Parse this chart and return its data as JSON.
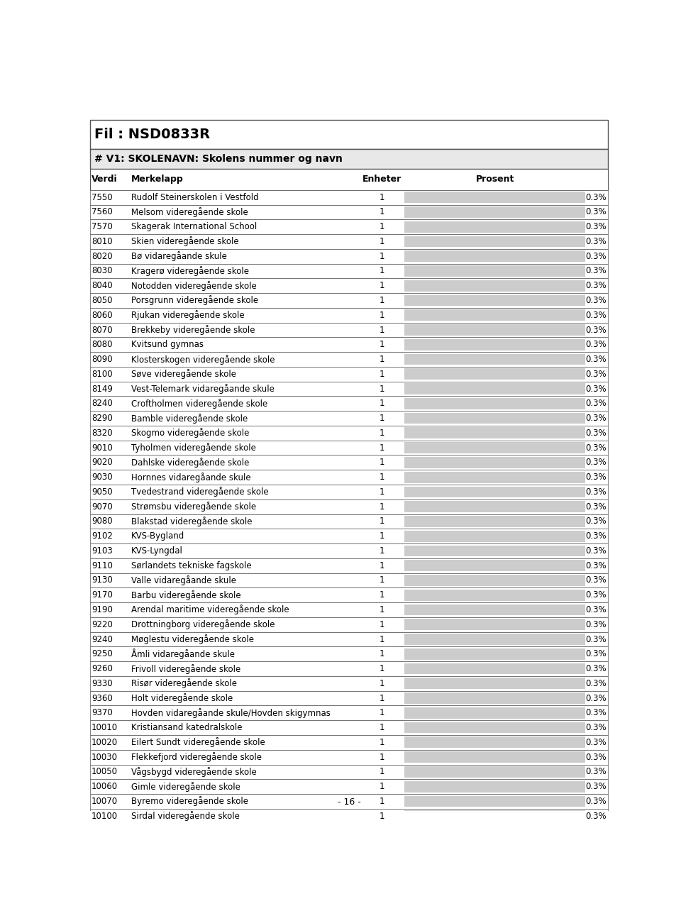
{
  "title": "Fil : NSD0833R",
  "subtitle": "# V1: SKOLENAVN: Skolens nummer og navn",
  "col_headers": [
    "Verdi",
    "Merkelapp",
    "Enheter",
    "Prosent"
  ],
  "rows": [
    [
      "7550",
      "Rudolf Steinerskolen i Vestfold",
      "1",
      "0.3%"
    ],
    [
      "7560",
      "Melsom videregående skole",
      "1",
      "0.3%"
    ],
    [
      "7570",
      "Skagerak International School",
      "1",
      "0.3%"
    ],
    [
      "8010",
      "Skien videregående skole",
      "1",
      "0.3%"
    ],
    [
      "8020",
      "Bø vidaregåande skule",
      "1",
      "0.3%"
    ],
    [
      "8030",
      "Kragerø videregående skole",
      "1",
      "0.3%"
    ],
    [
      "8040",
      "Notodden videregående skole",
      "1",
      "0.3%"
    ],
    [
      "8050",
      "Porsgrunn videregående skole",
      "1",
      "0.3%"
    ],
    [
      "8060",
      "Rjukan videregående skole",
      "1",
      "0.3%"
    ],
    [
      "8070",
      "Brekkeby videregående skole",
      "1",
      "0.3%"
    ],
    [
      "8080",
      "Kvitsund gymnas",
      "1",
      "0.3%"
    ],
    [
      "8090",
      "Klosterskogen videregående skole",
      "1",
      "0.3%"
    ],
    [
      "8100",
      "Søve videregående skole",
      "1",
      "0.3%"
    ],
    [
      "8149",
      "Vest-Telemark vidaregåande skule",
      "1",
      "0.3%"
    ],
    [
      "8240",
      "Croftholmen videregående skole",
      "1",
      "0.3%"
    ],
    [
      "8290",
      "Bamble videregående skole",
      "1",
      "0.3%"
    ],
    [
      "8320",
      "Skogmo videregående skole",
      "1",
      "0.3%"
    ],
    [
      "9010",
      "Tyholmen videregående skole",
      "1",
      "0.3%"
    ],
    [
      "9020",
      "Dahlske videregående skole",
      "1",
      "0.3%"
    ],
    [
      "9030",
      "Hornnes vidaregåande skule",
      "1",
      "0.3%"
    ],
    [
      "9050",
      "Tvedestrand videregående skole",
      "1",
      "0.3%"
    ],
    [
      "9070",
      "Strømsbu videregående skole",
      "1",
      "0.3%"
    ],
    [
      "9080",
      "Blakstad videregående skole",
      "1",
      "0.3%"
    ],
    [
      "9102",
      "KVS-Bygland",
      "1",
      "0.3%"
    ],
    [
      "9103",
      "KVS-Lyngdal",
      "1",
      "0.3%"
    ],
    [
      "9110",
      "Sørlandets tekniske fagskole",
      "1",
      "0.3%"
    ],
    [
      "9130",
      "Valle vidaregåande skule",
      "1",
      "0.3%"
    ],
    [
      "9170",
      "Barbu videregående skole",
      "1",
      "0.3%"
    ],
    [
      "9190",
      "Arendal maritime videregående skole",
      "1",
      "0.3%"
    ],
    [
      "9220",
      "Drottningborg videregående skole",
      "1",
      "0.3%"
    ],
    [
      "9240",
      "Møglestu videregående skole",
      "1",
      "0.3%"
    ],
    [
      "9250",
      "Åmli vidaregåande skule",
      "1",
      "0.3%"
    ],
    [
      "9260",
      "Frivoll videregående skole",
      "1",
      "0.3%"
    ],
    [
      "9330",
      "Risør videregående skole",
      "1",
      "0.3%"
    ],
    [
      "9360",
      "Holt videregående skole",
      "1",
      "0.3%"
    ],
    [
      "9370",
      "Hovden vidaregåande skule/Hovden skigymnas",
      "1",
      "0.3%"
    ],
    [
      "10010",
      "Kristiansand katedralskole",
      "1",
      "0.3%"
    ],
    [
      "10020",
      "Eilert Sundt videregående skole",
      "1",
      "0.3%"
    ],
    [
      "10030",
      "Flekkefjord videregående skole",
      "1",
      "0.3%"
    ],
    [
      "10050",
      "Vågsbygd videregående skole",
      "1",
      "0.3%"
    ],
    [
      "10060",
      "Gimle videregående skole",
      "1",
      "0.3%"
    ],
    [
      "10070",
      "Byremo videregående skole",
      "1",
      "0.3%"
    ],
    [
      "10100",
      "Sirdal videregående skole",
      "1",
      "0.3%"
    ]
  ],
  "bar_color": "#cccccc",
  "subtitle_bg": "#e8e8e8",
  "page_footer": "- 16 -",
  "border_color": "#555555"
}
